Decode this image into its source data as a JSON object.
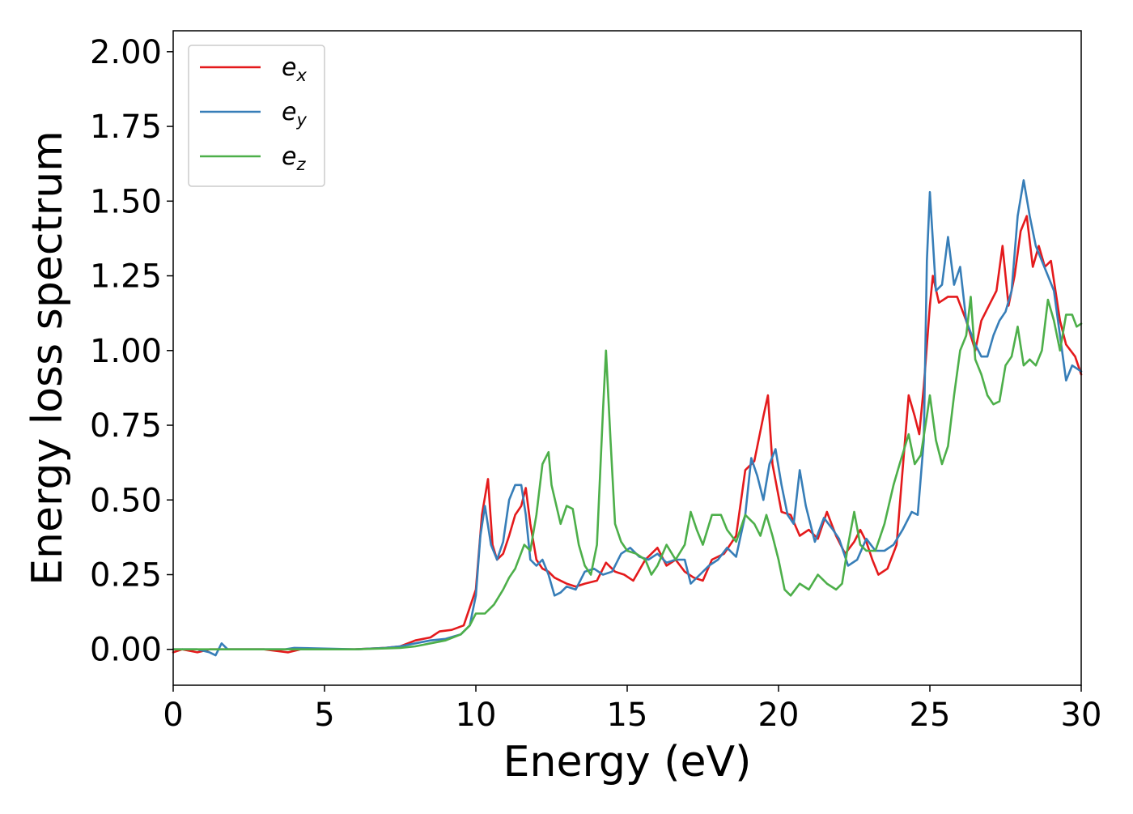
{
  "chart_data": {
    "type": "line",
    "title": "",
    "xlabel": "Energy (eV)",
    "ylabel": "Energy loss spectrum",
    "xlim": [
      0,
      30
    ],
    "ylim": [
      -0.12,
      2.07
    ],
    "xticks": [
      0,
      5,
      10,
      15,
      20,
      25,
      30
    ],
    "yticks": [
      0.0,
      0.25,
      0.5,
      0.75,
      1.0,
      1.25,
      1.5,
      1.75,
      2.0
    ],
    "xtick_labels": [
      "0",
      "5",
      "10",
      "15",
      "20",
      "25",
      "30"
    ],
    "ytick_labels": [
      "0.00",
      "0.25",
      "0.50",
      "0.75",
      "1.00",
      "1.25",
      "1.50",
      "1.75",
      "2.00"
    ],
    "grid": false,
    "legend_position": "top-left",
    "series": [
      {
        "name": "e_x",
        "label_base": "e",
        "label_sub": "x",
        "color": "#e41a1c",
        "points": [
          [
            0,
            -0.01
          ],
          [
            0.3,
            0.0
          ],
          [
            0.8,
            -0.01
          ],
          [
            1.2,
            0.0
          ],
          [
            3,
            0.0
          ],
          [
            3.8,
            -0.01
          ],
          [
            4.2,
            0.0
          ],
          [
            6,
            0.0
          ],
          [
            7,
            0.005
          ],
          [
            7.5,
            0.01
          ],
          [
            8,
            0.03
          ],
          [
            8.5,
            0.04
          ],
          [
            8.8,
            0.06
          ],
          [
            9.2,
            0.065
          ],
          [
            9.6,
            0.08
          ],
          [
            10.0,
            0.2
          ],
          [
            10.2,
            0.45
          ],
          [
            10.4,
            0.57
          ],
          [
            10.55,
            0.35
          ],
          [
            10.7,
            0.3
          ],
          [
            10.9,
            0.32
          ],
          [
            11.1,
            0.38
          ],
          [
            11.3,
            0.45
          ],
          [
            11.5,
            0.48
          ],
          [
            11.65,
            0.54
          ],
          [
            11.8,
            0.42
          ],
          [
            12.0,
            0.3
          ],
          [
            12.2,
            0.27
          ],
          [
            12.4,
            0.26
          ],
          [
            12.6,
            0.24
          ],
          [
            12.8,
            0.23
          ],
          [
            13.0,
            0.22
          ],
          [
            13.3,
            0.21
          ],
          [
            13.6,
            0.22
          ],
          [
            14.0,
            0.23
          ],
          [
            14.3,
            0.29
          ],
          [
            14.6,
            0.26
          ],
          [
            14.9,
            0.25
          ],
          [
            15.2,
            0.23
          ],
          [
            15.6,
            0.3
          ],
          [
            16.0,
            0.34
          ],
          [
            16.3,
            0.28
          ],
          [
            16.6,
            0.3
          ],
          [
            16.9,
            0.26
          ],
          [
            17.2,
            0.24
          ],
          [
            17.5,
            0.23
          ],
          [
            17.8,
            0.3
          ],
          [
            18.2,
            0.32
          ],
          [
            18.6,
            0.38
          ],
          [
            18.9,
            0.6
          ],
          [
            19.2,
            0.63
          ],
          [
            19.5,
            0.78
          ],
          [
            19.65,
            0.85
          ],
          [
            19.8,
            0.62
          ],
          [
            20.1,
            0.46
          ],
          [
            20.4,
            0.45
          ],
          [
            20.7,
            0.38
          ],
          [
            21.0,
            0.4
          ],
          [
            21.3,
            0.37
          ],
          [
            21.6,
            0.46
          ],
          [
            21.9,
            0.38
          ],
          [
            22.2,
            0.32
          ],
          [
            22.5,
            0.36
          ],
          [
            22.7,
            0.4
          ],
          [
            22.9,
            0.36
          ],
          [
            23.1,
            0.3
          ],
          [
            23.3,
            0.25
          ],
          [
            23.6,
            0.27
          ],
          [
            23.9,
            0.35
          ],
          [
            24.1,
            0.6
          ],
          [
            24.3,
            0.85
          ],
          [
            24.5,
            0.78
          ],
          [
            24.65,
            0.72
          ],
          [
            24.8,
            0.88
          ],
          [
            25.0,
            1.15
          ],
          [
            25.1,
            1.25
          ],
          [
            25.3,
            1.16
          ],
          [
            25.6,
            1.18
          ],
          [
            25.9,
            1.18
          ],
          [
            26.2,
            1.1
          ],
          [
            26.5,
            1.0
          ],
          [
            26.7,
            1.1
          ],
          [
            27.0,
            1.16
          ],
          [
            27.2,
            1.2
          ],
          [
            27.4,
            1.35
          ],
          [
            27.6,
            1.15
          ],
          [
            27.8,
            1.25
          ],
          [
            28.0,
            1.4
          ],
          [
            28.2,
            1.45
          ],
          [
            28.4,
            1.28
          ],
          [
            28.6,
            1.35
          ],
          [
            28.8,
            1.28
          ],
          [
            29.0,
            1.3
          ],
          [
            29.3,
            1.1
          ],
          [
            29.5,
            1.02
          ],
          [
            29.8,
            0.98
          ],
          [
            30.0,
            0.92
          ]
        ]
      },
      {
        "name": "e_y",
        "label_base": "e",
        "label_sub": "y",
        "color": "#377eb8",
        "points": [
          [
            0,
            0.0
          ],
          [
            0.8,
            0.0
          ],
          [
            1.2,
            -0.01
          ],
          [
            1.4,
            -0.02
          ],
          [
            1.6,
            0.02
          ],
          [
            1.8,
            0.0
          ],
          [
            3.7,
            0.0
          ],
          [
            4.0,
            0.005
          ],
          [
            6,
            0.0
          ],
          [
            7,
            0.005
          ],
          [
            7.5,
            0.01
          ],
          [
            8,
            0.02
          ],
          [
            8.5,
            0.03
          ],
          [
            9,
            0.035
          ],
          [
            9.5,
            0.05
          ],
          [
            9.8,
            0.08
          ],
          [
            10.0,
            0.18
          ],
          [
            10.15,
            0.38
          ],
          [
            10.3,
            0.48
          ],
          [
            10.5,
            0.35
          ],
          [
            10.7,
            0.3
          ],
          [
            10.9,
            0.36
          ],
          [
            11.1,
            0.5
          ],
          [
            11.3,
            0.55
          ],
          [
            11.5,
            0.55
          ],
          [
            11.65,
            0.45
          ],
          [
            11.8,
            0.3
          ],
          [
            12.0,
            0.28
          ],
          [
            12.2,
            0.3
          ],
          [
            12.4,
            0.25
          ],
          [
            12.6,
            0.18
          ],
          [
            12.8,
            0.19
          ],
          [
            13.0,
            0.21
          ],
          [
            13.3,
            0.2
          ],
          [
            13.6,
            0.26
          ],
          [
            13.9,
            0.27
          ],
          [
            14.2,
            0.25
          ],
          [
            14.5,
            0.26
          ],
          [
            14.8,
            0.32
          ],
          [
            15.1,
            0.34
          ],
          [
            15.4,
            0.31
          ],
          [
            15.7,
            0.3
          ],
          [
            16.0,
            0.32
          ],
          [
            16.3,
            0.29
          ],
          [
            16.6,
            0.3
          ],
          [
            16.9,
            0.3
          ],
          [
            17.1,
            0.22
          ],
          [
            17.4,
            0.25
          ],
          [
            17.7,
            0.28
          ],
          [
            18.0,
            0.3
          ],
          [
            18.3,
            0.34
          ],
          [
            18.6,
            0.31
          ],
          [
            18.9,
            0.45
          ],
          [
            19.1,
            0.64
          ],
          [
            19.3,
            0.58
          ],
          [
            19.5,
            0.5
          ],
          [
            19.7,
            0.62
          ],
          [
            19.9,
            0.67
          ],
          [
            20.1,
            0.55
          ],
          [
            20.3,
            0.45
          ],
          [
            20.5,
            0.42
          ],
          [
            20.7,
            0.6
          ],
          [
            20.9,
            0.48
          ],
          [
            21.2,
            0.36
          ],
          [
            21.5,
            0.44
          ],
          [
            21.8,
            0.4
          ],
          [
            22.0,
            0.37
          ],
          [
            22.3,
            0.28
          ],
          [
            22.6,
            0.3
          ],
          [
            22.9,
            0.37
          ],
          [
            23.2,
            0.33
          ],
          [
            23.5,
            0.33
          ],
          [
            23.8,
            0.35
          ],
          [
            24.1,
            0.4
          ],
          [
            24.4,
            0.46
          ],
          [
            24.6,
            0.45
          ],
          [
            24.8,
            0.7
          ],
          [
            24.9,
            1.3
          ],
          [
            25.0,
            1.53
          ],
          [
            25.2,
            1.2
          ],
          [
            25.4,
            1.22
          ],
          [
            25.6,
            1.38
          ],
          [
            25.8,
            1.22
          ],
          [
            26.0,
            1.28
          ],
          [
            26.2,
            1.1
          ],
          [
            26.5,
            1.02
          ],
          [
            26.7,
            0.98
          ],
          [
            26.9,
            0.98
          ],
          [
            27.1,
            1.05
          ],
          [
            27.3,
            1.1
          ],
          [
            27.5,
            1.13
          ],
          [
            27.7,
            1.2
          ],
          [
            27.9,
            1.45
          ],
          [
            28.1,
            1.57
          ],
          [
            28.3,
            1.45
          ],
          [
            28.5,
            1.35
          ],
          [
            28.7,
            1.3
          ],
          [
            28.9,
            1.25
          ],
          [
            29.1,
            1.2
          ],
          [
            29.3,
            1.05
          ],
          [
            29.5,
            0.9
          ],
          [
            29.7,
            0.95
          ],
          [
            30.0,
            0.93
          ]
        ]
      },
      {
        "name": "e_z",
        "label_base": "e",
        "label_sub": "z",
        "color": "#4daf4a",
        "points": [
          [
            0,
            0.0
          ],
          [
            6,
            0.0
          ],
          [
            7,
            0.003
          ],
          [
            7.5,
            0.005
          ],
          [
            8,
            0.01
          ],
          [
            8.5,
            0.02
          ],
          [
            9,
            0.03
          ],
          [
            9.5,
            0.05
          ],
          [
            9.8,
            0.08
          ],
          [
            10.0,
            0.12
          ],
          [
            10.3,
            0.12
          ],
          [
            10.6,
            0.15
          ],
          [
            10.9,
            0.2
          ],
          [
            11.1,
            0.24
          ],
          [
            11.3,
            0.27
          ],
          [
            11.6,
            0.35
          ],
          [
            11.8,
            0.33
          ],
          [
            12.0,
            0.45
          ],
          [
            12.2,
            0.62
          ],
          [
            12.4,
            0.66
          ],
          [
            12.5,
            0.55
          ],
          [
            12.8,
            0.42
          ],
          [
            13.0,
            0.48
          ],
          [
            13.2,
            0.47
          ],
          [
            13.4,
            0.35
          ],
          [
            13.6,
            0.28
          ],
          [
            13.8,
            0.25
          ],
          [
            14.0,
            0.35
          ],
          [
            14.2,
            0.8
          ],
          [
            14.3,
            1.0
          ],
          [
            14.45,
            0.7
          ],
          [
            14.6,
            0.42
          ],
          [
            14.8,
            0.36
          ],
          [
            15.0,
            0.33
          ],
          [
            15.3,
            0.32
          ],
          [
            15.6,
            0.3
          ],
          [
            15.8,
            0.25
          ],
          [
            16.0,
            0.28
          ],
          [
            16.3,
            0.35
          ],
          [
            16.6,
            0.3
          ],
          [
            16.9,
            0.35
          ],
          [
            17.1,
            0.46
          ],
          [
            17.3,
            0.4
          ],
          [
            17.5,
            0.35
          ],
          [
            17.8,
            0.45
          ],
          [
            18.1,
            0.45
          ],
          [
            18.3,
            0.4
          ],
          [
            18.6,
            0.36
          ],
          [
            18.9,
            0.45
          ],
          [
            19.2,
            0.42
          ],
          [
            19.4,
            0.38
          ],
          [
            19.6,
            0.45
          ],
          [
            19.8,
            0.38
          ],
          [
            20.0,
            0.3
          ],
          [
            20.2,
            0.2
          ],
          [
            20.4,
            0.18
          ],
          [
            20.7,
            0.22
          ],
          [
            21.0,
            0.2
          ],
          [
            21.3,
            0.25
          ],
          [
            21.6,
            0.22
          ],
          [
            21.9,
            0.2
          ],
          [
            22.1,
            0.22
          ],
          [
            22.3,
            0.35
          ],
          [
            22.5,
            0.46
          ],
          [
            22.7,
            0.35
          ],
          [
            22.9,
            0.33
          ],
          [
            23.2,
            0.33
          ],
          [
            23.5,
            0.42
          ],
          [
            23.8,
            0.55
          ],
          [
            24.0,
            0.62
          ],
          [
            24.3,
            0.72
          ],
          [
            24.5,
            0.62
          ],
          [
            24.7,
            0.65
          ],
          [
            24.9,
            0.78
          ],
          [
            25.0,
            0.85
          ],
          [
            25.2,
            0.7
          ],
          [
            25.4,
            0.62
          ],
          [
            25.6,
            0.68
          ],
          [
            25.8,
            0.85
          ],
          [
            26.0,
            1.0
          ],
          [
            26.2,
            1.05
          ],
          [
            26.35,
            1.18
          ],
          [
            26.5,
            0.97
          ],
          [
            26.7,
            0.92
          ],
          [
            26.9,
            0.85
          ],
          [
            27.1,
            0.82
          ],
          [
            27.3,
            0.83
          ],
          [
            27.5,
            0.95
          ],
          [
            27.7,
            0.98
          ],
          [
            27.9,
            1.08
          ],
          [
            28.1,
            0.95
          ],
          [
            28.3,
            0.97
          ],
          [
            28.5,
            0.95
          ],
          [
            28.7,
            1.0
          ],
          [
            28.9,
            1.17
          ],
          [
            29.1,
            1.1
          ],
          [
            29.3,
            1.0
          ],
          [
            29.5,
            1.12
          ],
          [
            29.7,
            1.12
          ],
          [
            29.85,
            1.08
          ],
          [
            30.0,
            1.09
          ]
        ]
      }
    ]
  }
}
